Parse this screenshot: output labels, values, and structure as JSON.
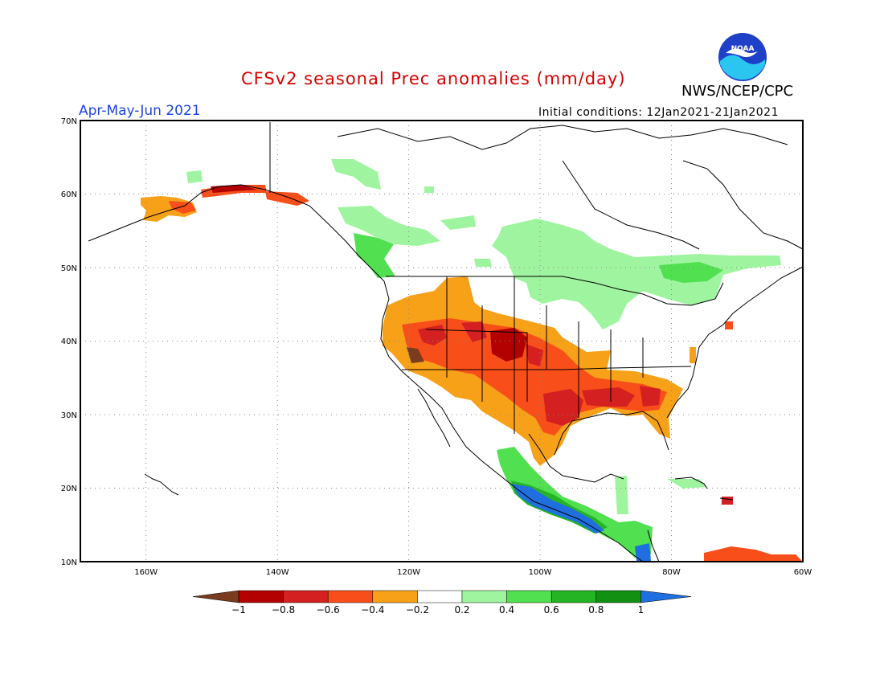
{
  "title": "CFSv2 seasonal Prec anomalies (mm/day)",
  "season": "Apr-May-Jun 2021",
  "initial_conditions": "Initial conditions: 12Jan2021-21Jan2021",
  "agency": "NWS/NCEP/CPC",
  "logo_text": "NOAA",
  "lat_labels": [
    "70N",
    "60N",
    "50N",
    "40N",
    "30N",
    "20N",
    "10N"
  ],
  "lon_labels": [
    "160W",
    "140W",
    "120W",
    "100W",
    "80W",
    "60W"
  ],
  "colorbar": {
    "tick_labels": [
      "-1",
      "-0.8",
      "-0.6",
      "-0.4",
      "-0.2",
      "0.2",
      "0.4",
      "0.6",
      "0.8",
      "1"
    ],
    "colors": [
      "#7a3b1e",
      "#b30000",
      "#d42020",
      "#f84e1a",
      "#f7a118",
      "#ffffff",
      "#9ff59f",
      "#50e050",
      "#24b424",
      "#119011",
      "#1f6fe0"
    ]
  },
  "map_extent": {
    "lon": [
      -170,
      -60
    ],
    "lat": [
      10,
      70
    ]
  }
}
